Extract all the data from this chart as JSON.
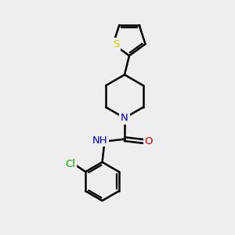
{
  "bg_color": "#eeeeee",
  "bond_color": "#000000",
  "bond_width": 1.8,
  "atom_colors": {
    "S": "#cccc00",
    "N": "#0000cc",
    "O": "#cc0000",
    "Cl": "#00aa00",
    "C": "#000000"
  },
  "font_size": 9.5
}
